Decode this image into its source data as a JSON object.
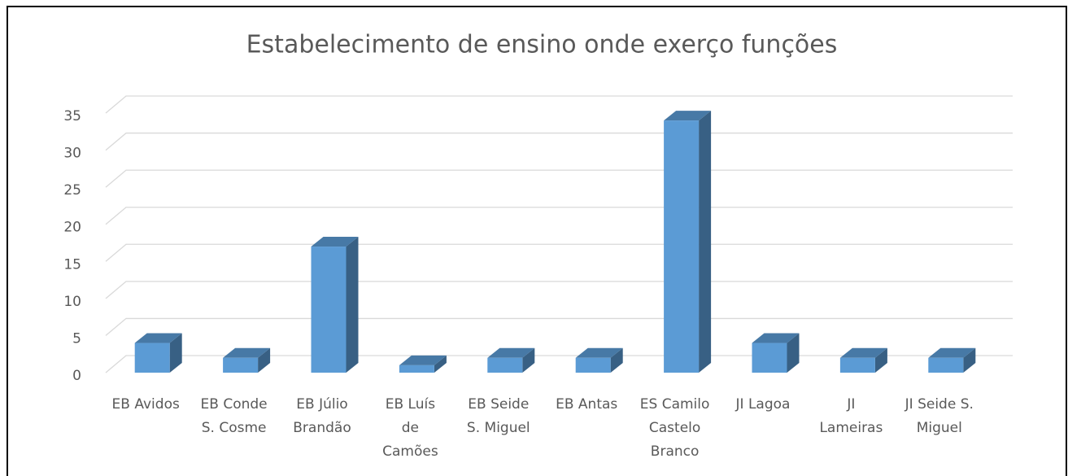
{
  "chart_data": {
    "type": "bar3d",
    "title": "Estabelecimento de ensino onde exerço funções",
    "categories": [
      [
        "EB Avidos"
      ],
      [
        "EB Conde",
        "S. Cosme"
      ],
      [
        "EB Júlio",
        "Brandão"
      ],
      [
        "EB Luís",
        "de",
        "Camões"
      ],
      [
        "EB Seide",
        "S. Miguel"
      ],
      [
        "EB  Antas"
      ],
      [
        "ES Camilo",
        "Castelo",
        "Branco"
      ],
      [
        "JI Lagoa"
      ],
      [
        "JI",
        "Lameiras"
      ],
      [
        "JI Seide S.",
        "Miguel"
      ]
    ],
    "values": [
      4,
      2,
      17,
      1,
      2,
      2,
      34,
      4,
      2,
      2
    ],
    "color": "#5b9bd5",
    "ylim": [
      0,
      35
    ],
    "yticks": [
      0,
      5,
      10,
      15,
      20,
      25,
      30,
      35
    ],
    "grid": true
  }
}
